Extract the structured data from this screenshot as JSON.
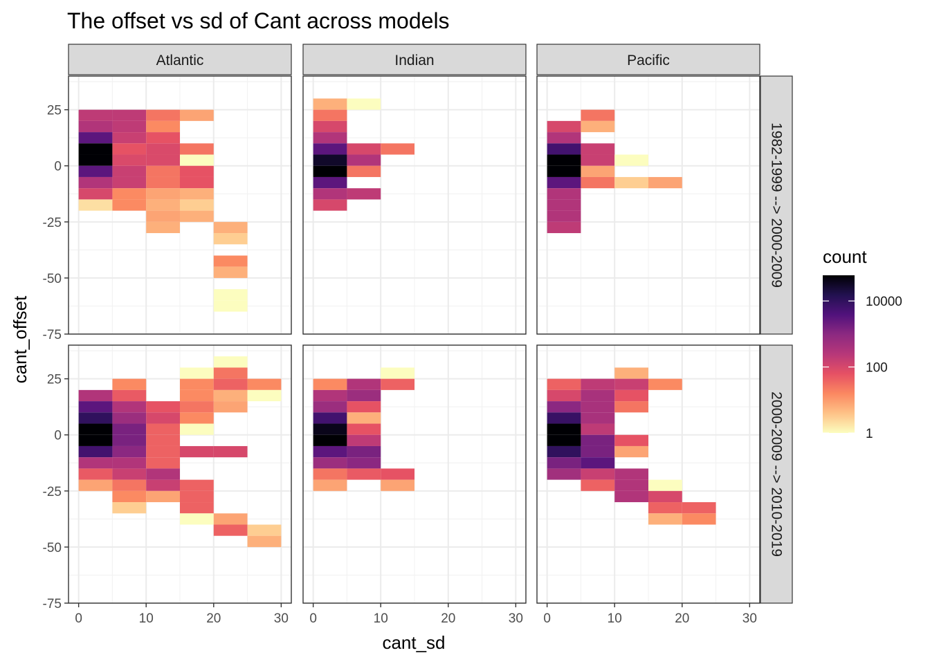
{
  "chart_data": {
    "type": "heatmap",
    "title": "The offset vs sd of Cant across models",
    "xlabel": "cant_sd",
    "ylabel": "cant_offset",
    "xlim": [
      -1.5,
      31.5
    ],
    "ylim": [
      -75,
      40
    ],
    "x_ticks": [
      0,
      10,
      20,
      30
    ],
    "y_ticks": [
      -75,
      -50,
      -25,
      0,
      25
    ],
    "x_tick_labels": [
      "0",
      "10",
      "20",
      "30"
    ],
    "y_tick_labels": [
      "-75",
      "-50",
      "-25",
      "0",
      "25"
    ],
    "bin_width_x": 5,
    "bin_height_y": 5,
    "columns": [
      "Atlantic",
      "Indian",
      "Pacific"
    ],
    "rows": [
      "1982-1999 --> 2000-2009",
      "2000-2009 --> 2010-2019"
    ],
    "legend": {
      "title": "count",
      "scale": "log10",
      "breaks": [
        1,
        100,
        10000
      ],
      "break_labels": [
        "1",
        "100",
        "10000"
      ],
      "range": [
        1,
        60000
      ],
      "position": "right",
      "colors": [
        "#FCFDBF",
        "#FEC287",
        "#FB8861",
        "#E65164",
        "#B73779",
        "#8C2981",
        "#51127C",
        "#221150",
        "#000004"
      ]
    },
    "panels": [
      {
        "row": 0,
        "col": 0,
        "cells": [
          [
            0,
            20,
            200
          ],
          [
            0,
            15,
            300
          ],
          [
            0,
            10,
            3000
          ],
          [
            0,
            5,
            60000
          ],
          [
            0,
            0,
            60000
          ],
          [
            0,
            -5,
            3000
          ],
          [
            0,
            -10,
            300
          ],
          [
            0,
            -15,
            100
          ],
          [
            0,
            -20,
            2
          ],
          [
            5,
            20,
            200
          ],
          [
            5,
            15,
            200
          ],
          [
            5,
            10,
            150
          ],
          [
            5,
            5,
            60
          ],
          [
            5,
            0,
            90
          ],
          [
            5,
            -5,
            150
          ],
          [
            5,
            -10,
            150
          ],
          [
            5,
            -15,
            15
          ],
          [
            5,
            -20,
            15
          ],
          [
            10,
            20,
            25
          ],
          [
            10,
            15,
            15
          ],
          [
            10,
            10,
            60
          ],
          [
            10,
            5,
            90
          ],
          [
            10,
            0,
            90
          ],
          [
            10,
            -5,
            25
          ],
          [
            10,
            -10,
            25
          ],
          [
            10,
            -15,
            8
          ],
          [
            10,
            -20,
            6
          ],
          [
            10,
            -25,
            8
          ],
          [
            10,
            -30,
            6
          ],
          [
            15,
            20,
            8
          ],
          [
            15,
            5,
            25
          ],
          [
            15,
            0,
            1
          ],
          [
            15,
            -5,
            60
          ],
          [
            15,
            -10,
            60
          ],
          [
            15,
            -15,
            6
          ],
          [
            15,
            -20,
            3
          ],
          [
            15,
            -25,
            6
          ],
          [
            20,
            -30,
            6
          ],
          [
            20,
            -35,
            3
          ],
          [
            20,
            -45,
            15
          ],
          [
            20,
            -50,
            6
          ],
          [
            20,
            -60,
            1
          ],
          [
            20,
            -65,
            1
          ]
        ]
      },
      {
        "row": 0,
        "col": 1,
        "cells": [
          [
            0,
            25,
            6
          ],
          [
            0,
            20,
            25
          ],
          [
            0,
            15,
            100
          ],
          [
            0,
            10,
            300
          ],
          [
            0,
            5,
            3000
          ],
          [
            0,
            0,
            30000
          ],
          [
            0,
            -5,
            60000
          ],
          [
            0,
            -10,
            3000
          ],
          [
            0,
            -15,
            300
          ],
          [
            0,
            -20,
            100
          ],
          [
            5,
            25,
            1
          ],
          [
            5,
            5,
            100
          ],
          [
            5,
            0,
            300
          ],
          [
            5,
            -5,
            25
          ],
          [
            5,
            -15,
            200
          ],
          [
            10,
            5,
            25
          ]
        ]
      },
      {
        "row": 0,
        "col": 2,
        "cells": [
          [
            0,
            15,
            100
          ],
          [
            0,
            10,
            300
          ],
          [
            0,
            5,
            6000
          ],
          [
            0,
            0,
            60000
          ],
          [
            0,
            -5,
            60000
          ],
          [
            0,
            -10,
            3000
          ],
          [
            0,
            -15,
            300
          ],
          [
            0,
            -20,
            300
          ],
          [
            0,
            -25,
            300
          ],
          [
            0,
            -30,
            200
          ],
          [
            5,
            20,
            25
          ],
          [
            5,
            15,
            6
          ],
          [
            5,
            5,
            150
          ],
          [
            5,
            0,
            150
          ],
          [
            5,
            -5,
            8
          ],
          [
            5,
            -10,
            25
          ],
          [
            10,
            0,
            1
          ],
          [
            10,
            -10,
            3
          ],
          [
            15,
            -10,
            8
          ]
        ]
      },
      {
        "row": 1,
        "col": 0,
        "cells": [
          [
            0,
            15,
            300
          ],
          [
            0,
            10,
            3000
          ],
          [
            0,
            5,
            10000
          ],
          [
            0,
            0,
            60000
          ],
          [
            0,
            -5,
            60000
          ],
          [
            0,
            -10,
            6000
          ],
          [
            0,
            -15,
            300
          ],
          [
            0,
            -20,
            50
          ],
          [
            0,
            -25,
            8
          ],
          [
            5,
            20,
            15
          ],
          [
            5,
            15,
            50
          ],
          [
            5,
            10,
            300
          ],
          [
            5,
            5,
            600
          ],
          [
            5,
            0,
            1500
          ],
          [
            5,
            -5,
            1500
          ],
          [
            5,
            -10,
            1000
          ],
          [
            5,
            -15,
            300
          ],
          [
            5,
            -20,
            150
          ],
          [
            5,
            -25,
            25
          ],
          [
            5,
            -30,
            15
          ],
          [
            5,
            -35,
            3
          ],
          [
            10,
            10,
            60
          ],
          [
            10,
            5,
            100
          ],
          [
            10,
            0,
            40
          ],
          [
            10,
            -5,
            40
          ],
          [
            10,
            -10,
            40
          ],
          [
            10,
            -15,
            40
          ],
          [
            10,
            -20,
            300
          ],
          [
            10,
            -25,
            150
          ],
          [
            10,
            -30,
            8
          ],
          [
            15,
            25,
            1
          ],
          [
            15,
            20,
            15
          ],
          [
            15,
            15,
            15
          ],
          [
            15,
            10,
            25
          ],
          [
            15,
            5,
            15
          ],
          [
            15,
            0,
            1
          ],
          [
            15,
            -10,
            100
          ],
          [
            15,
            -25,
            40
          ],
          [
            15,
            -30,
            40
          ],
          [
            15,
            -35,
            40
          ],
          [
            15,
            -40,
            1
          ],
          [
            20,
            30,
            1
          ],
          [
            20,
            25,
            25
          ],
          [
            20,
            20,
            40
          ],
          [
            20,
            15,
            6
          ],
          [
            20,
            10,
            8
          ],
          [
            20,
            -10,
            100
          ],
          [
            20,
            -40,
            8
          ],
          [
            20,
            -45,
            40
          ],
          [
            25,
            20,
            15
          ],
          [
            25,
            15,
            1
          ],
          [
            25,
            -45,
            3
          ],
          [
            25,
            -50,
            6
          ]
        ]
      },
      {
        "row": 1,
        "col": 1,
        "cells": [
          [
            0,
            20,
            15
          ],
          [
            0,
            15,
            300
          ],
          [
            0,
            10,
            600
          ],
          [
            0,
            5,
            6000
          ],
          [
            0,
            0,
            40000
          ],
          [
            0,
            -5,
            60000
          ],
          [
            0,
            -10,
            3000
          ],
          [
            0,
            -15,
            600
          ],
          [
            0,
            -20,
            25
          ],
          [
            0,
            -25,
            8
          ],
          [
            5,
            20,
            300
          ],
          [
            5,
            15,
            600
          ],
          [
            5,
            10,
            60
          ],
          [
            5,
            5,
            6
          ],
          [
            5,
            0,
            60
          ],
          [
            5,
            -5,
            200
          ],
          [
            5,
            -10,
            1500
          ],
          [
            5,
            -15,
            1000
          ],
          [
            5,
            -20,
            50
          ],
          [
            10,
            25,
            1
          ],
          [
            10,
            20,
            40
          ],
          [
            10,
            -20,
            60
          ],
          [
            10,
            -25,
            8
          ]
        ]
      },
      {
        "row": 1,
        "col": 2,
        "cells": [
          [
            0,
            20,
            40
          ],
          [
            0,
            15,
            100
          ],
          [
            0,
            10,
            1000
          ],
          [
            0,
            5,
            8000
          ],
          [
            0,
            0,
            60000
          ],
          [
            0,
            -5,
            60000
          ],
          [
            0,
            -10,
            10000
          ],
          [
            0,
            -15,
            1500
          ],
          [
            0,
            -20,
            500
          ],
          [
            5,
            20,
            200
          ],
          [
            5,
            15,
            400
          ],
          [
            5,
            10,
            400
          ],
          [
            5,
            5,
            400
          ],
          [
            5,
            0,
            200
          ],
          [
            5,
            -5,
            1500
          ],
          [
            5,
            -10,
            1500
          ],
          [
            5,
            -15,
            3000
          ],
          [
            5,
            -20,
            150
          ],
          [
            5,
            -25,
            40
          ],
          [
            10,
            25,
            6
          ],
          [
            10,
            20,
            150
          ],
          [
            10,
            15,
            60
          ],
          [
            10,
            10,
            25
          ],
          [
            10,
            -5,
            60
          ],
          [
            10,
            -10,
            8
          ],
          [
            10,
            -20,
            300
          ],
          [
            10,
            -25,
            300
          ],
          [
            10,
            -30,
            300
          ],
          [
            15,
            20,
            15
          ],
          [
            15,
            -25,
            1
          ],
          [
            15,
            -30,
            100
          ],
          [
            15,
            -35,
            40
          ],
          [
            15,
            -40,
            6
          ],
          [
            20,
            -35,
            40
          ],
          [
            20,
            -40,
            15
          ]
        ]
      }
    ]
  }
}
